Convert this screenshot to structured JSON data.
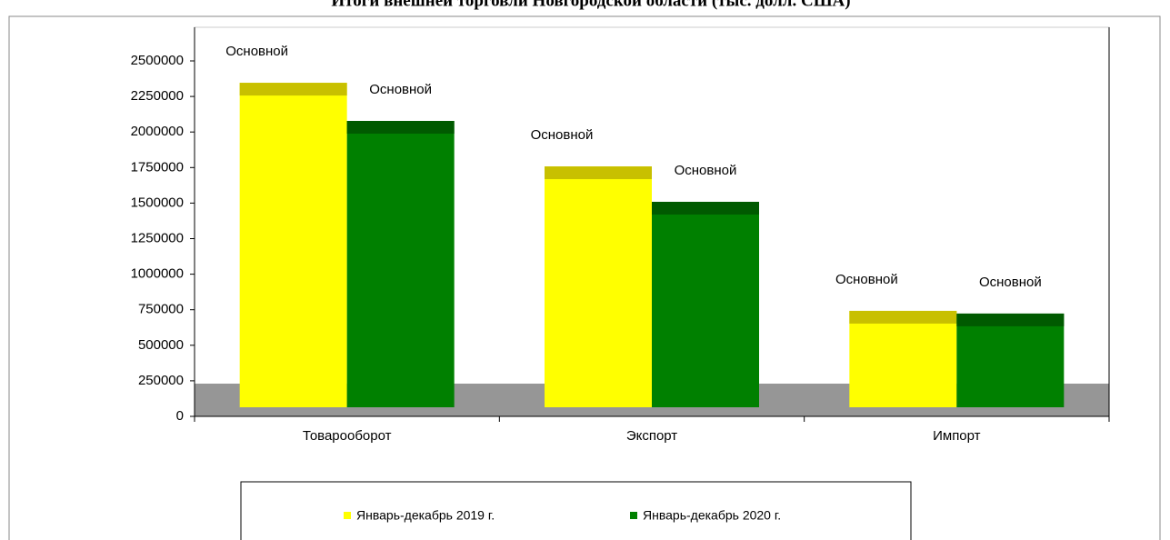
{
  "chart_data": {
    "type": "bar",
    "title": "Итоги внешней торговли Новгородской области (тыс. долл. США)",
    "categories": [
      "Товарооборот",
      "Экспорт",
      "Импорт"
    ],
    "series": [
      {
        "name": "Январь-декабрь 2019 г.",
        "color": "#ffff00",
        "values": [
          2346000,
          1758000,
          742000
        ],
        "value_labels": [
          "Основной",
          "Основной",
          "Основной"
        ]
      },
      {
        "name": "Январь-декабрь 2020 г.",
        "color": "#008000",
        "values": [
          2078000,
          1509000,
          723000
        ],
        "value_labels": [
          "Основной",
          "Основной",
          "Основной"
        ]
      }
    ],
    "ylim": [
      0,
      2500000
    ],
    "yticks": [
      0,
      250000,
      500000,
      750000,
      1000000,
      1250000,
      1500000,
      1750000,
      2000000,
      2250000,
      2500000
    ],
    "legend": "bottom"
  }
}
